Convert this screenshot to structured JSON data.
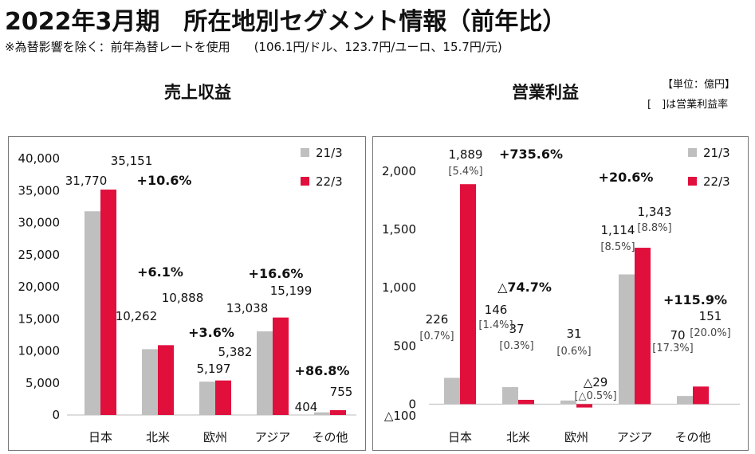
{
  "header": {
    "title": "2022年3月期　所在地別セグメント情報（前年比）",
    "note": "※為替影響を除く：前年為替レートを使用　　(106.1円/ドル、123.7円/ユーロ、15.7円/元)"
  },
  "unit_note": {
    "line1": "【単位：億円】",
    "line2": "[　]は営業利益率"
  },
  "colors": {
    "prev": "#bfbfbf",
    "curr": "#e00f3c"
  },
  "chart_data": [
    {
      "type": "bar",
      "title": "売上収益",
      "categories": [
        "日本",
        "北米",
        "欧州",
        "アジア",
        "その他"
      ],
      "series": [
        {
          "name": "21/3",
          "values": [
            31770,
            10262,
            5197,
            13038,
            404
          ]
        },
        {
          "name": "22/3",
          "values": [
            35151,
            10888,
            5382,
            15199,
            755
          ]
        }
      ],
      "value_labels": {
        "prev": [
          "31,770",
          "10,262",
          "5,197",
          "13,038",
          "404"
        ],
        "curr": [
          "35,151",
          "10,888",
          "5,382",
          "15,199",
          "755"
        ]
      },
      "growth": [
        "+10.6%",
        "+6.1%",
        "+3.6%",
        "+16.6%",
        "+86.8%"
      ],
      "ylim": [
        0,
        40000
      ],
      "yticks": [
        0,
        5000,
        10000,
        15000,
        20000,
        25000,
        30000,
        35000,
        40000
      ],
      "ytick_labels": [
        "0",
        "5,000",
        "10,000",
        "15,000",
        "20,000",
        "25,000",
        "30,000",
        "35,000",
        "40,000"
      ],
      "legend": {
        "placement": "top-right",
        "labels": [
          "21/3",
          "22/3"
        ]
      },
      "grid": false
    },
    {
      "type": "bar",
      "title": "営業利益",
      "categories": [
        "日本",
        "北米",
        "欧州",
        "アジア",
        "その他"
      ],
      "series": [
        {
          "name": "21/3",
          "values": [
            226,
            146,
            31,
            1114,
            70
          ]
        },
        {
          "name": "22/3",
          "values": [
            1889,
            37,
            -29,
            1343,
            151
          ]
        }
      ],
      "value_labels": {
        "prev": [
          "226",
          "146",
          "31",
          "1,114",
          "70"
        ],
        "curr": [
          "1,889",
          "37",
          "△29",
          "1,343",
          "151"
        ]
      },
      "margins": {
        "prev": [
          "[0.7%]",
          "[1.4%]",
          "[0.6%]",
          "[8.5%]",
          "[17.3%]"
        ],
        "curr": [
          "[5.4%]",
          "[0.3%]",
          "[△0.5%]",
          "[8.8%]",
          "[20.0%]"
        ]
      },
      "growth": [
        "+735.6%",
        "△74.7%",
        "",
        "+20.6%",
        "+115.9%"
      ],
      "ylim": [
        -100,
        2000
      ],
      "yticks": [
        -100,
        0,
        500,
        1000,
        1500,
        2000
      ],
      "ytick_labels": [
        "△100",
        "0",
        "500",
        "1,000",
        "1,500",
        "2,000"
      ],
      "legend": {
        "placement": "top-right",
        "labels": [
          "21/3",
          "22/3"
        ]
      },
      "grid": false
    }
  ]
}
